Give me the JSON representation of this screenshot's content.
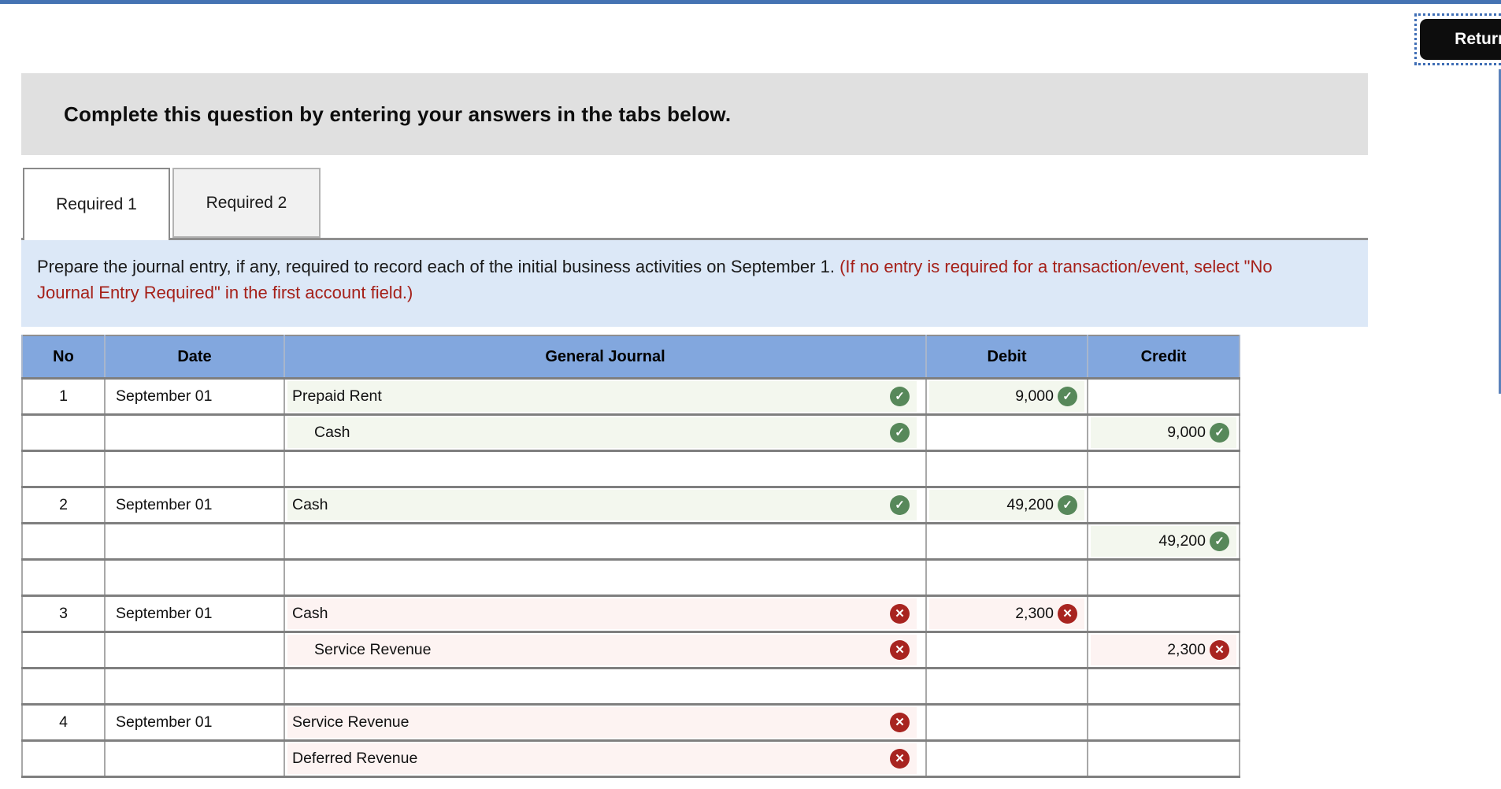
{
  "colors": {
    "top_bar": "#4573b3",
    "right_edge": "#5b82bb",
    "banner_bg": "#e0e0e0",
    "panel_bg": "#dce8f7",
    "note_red": "#a52019",
    "header_bg": "#82a7de",
    "correct": "#57885a",
    "wrong": "#a82420",
    "tint_correct": "#f3f7ee",
    "tint_wrong": "#fdf3f2"
  },
  "return_button": {
    "label": "Return"
  },
  "banner": {
    "text": "Complete this question by entering your answers in the tabs below."
  },
  "tabs": [
    {
      "label": "Required 1",
      "active": true
    },
    {
      "label": "Required 2",
      "active": false
    }
  ],
  "instruction": {
    "main": "Prepare the journal entry, if any, required to record each of the initial business activities on September 1.",
    "note": "(If no entry is required for a transaction/event, select \"No Journal Entry Required\" in the first account field.)"
  },
  "journal_table": {
    "headers": [
      "No",
      "Date",
      "General Journal",
      "Debit",
      "Credit"
    ],
    "icons": {
      "correct": "✓",
      "wrong": "✕"
    },
    "rows": [
      {
        "no": "1",
        "date": "September 01",
        "account": "Prepaid Rent",
        "indent": false,
        "account_status": "correct",
        "debit": "9,000",
        "debit_status": "correct",
        "credit": "",
        "credit_status": null
      },
      {
        "no": "",
        "date": "",
        "account": "Cash",
        "indent": true,
        "account_status": "correct",
        "debit": "",
        "debit_status": null,
        "credit": "9,000",
        "credit_status": "correct"
      },
      {
        "no": "",
        "date": "",
        "account": "",
        "indent": false,
        "account_status": null,
        "debit": "",
        "debit_status": null,
        "credit": "",
        "credit_status": null
      },
      {
        "no": "2",
        "date": "September 01",
        "account": "Cash",
        "indent": false,
        "account_status": "correct",
        "debit": "49,200",
        "debit_status": "correct",
        "credit": "",
        "credit_status": null
      },
      {
        "no": "",
        "date": "",
        "account": "",
        "indent": false,
        "account_status": null,
        "debit": "",
        "debit_status": null,
        "credit": "49,200",
        "credit_status": "correct"
      },
      {
        "no": "",
        "date": "",
        "account": "",
        "indent": false,
        "account_status": null,
        "debit": "",
        "debit_status": null,
        "credit": "",
        "credit_status": null
      },
      {
        "no": "3",
        "date": "September 01",
        "account": "Cash",
        "indent": false,
        "account_status": "wrong",
        "debit": "2,300",
        "debit_status": "wrong",
        "credit": "",
        "credit_status": null
      },
      {
        "no": "",
        "date": "",
        "account": "Service Revenue",
        "indent": true,
        "account_status": "wrong",
        "debit": "",
        "debit_status": null,
        "credit": "2,300",
        "credit_status": "wrong"
      },
      {
        "no": "",
        "date": "",
        "account": "",
        "indent": false,
        "account_status": null,
        "debit": "",
        "debit_status": null,
        "credit": "",
        "credit_status": null
      },
      {
        "no": "4",
        "date": "September 01",
        "account": "Service Revenue",
        "indent": false,
        "account_status": "wrong",
        "debit": "",
        "debit_status": null,
        "credit": "",
        "credit_status": null
      },
      {
        "no": "",
        "date": "",
        "account": "Deferred Revenue",
        "indent": false,
        "account_status": "wrong",
        "debit": "",
        "debit_status": null,
        "credit": "",
        "credit_status": null
      }
    ]
  }
}
